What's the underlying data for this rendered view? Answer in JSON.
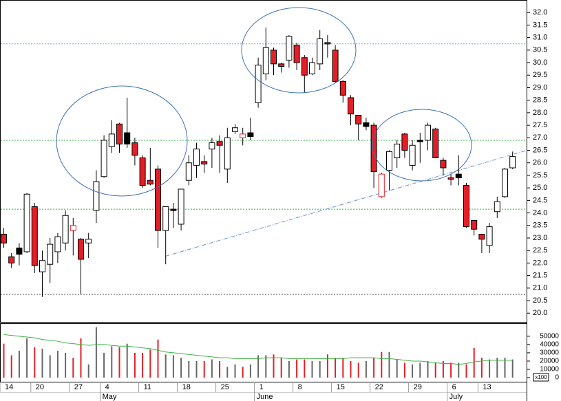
{
  "chart_data": {
    "type": "candlestick",
    "categories": [
      "14",
      null,
      null,
      null,
      "20",
      null,
      null,
      null,
      null,
      "27",
      null,
      null,
      null,
      "4",
      null,
      null,
      null,
      null,
      "11",
      null,
      null,
      null,
      null,
      "18",
      null,
      null,
      null,
      null,
      "25",
      null,
      null,
      null,
      null,
      "1",
      null,
      null,
      null,
      null,
      "8",
      null,
      null,
      null,
      null,
      "15",
      null,
      null,
      null,
      null,
      "22",
      null,
      null,
      null,
      null,
      "29",
      null,
      null,
      null,
      null,
      "6",
      null,
      null,
      null,
      "13",
      null,
      null,
      null,
      null
    ],
    "months": [
      null,
      null,
      null,
      null,
      null,
      null,
      null,
      null,
      null,
      null,
      null,
      null,
      null,
      "May",
      null,
      null,
      null,
      null,
      null,
      null,
      null,
      null,
      null,
      null,
      null,
      null,
      null,
      null,
      null,
      null,
      null,
      null,
      null,
      "June",
      null,
      null,
      null,
      null,
      null,
      null,
      null,
      null,
      null,
      null,
      null,
      null,
      null,
      null,
      null,
      null,
      null,
      null,
      null,
      null,
      null,
      null,
      null,
      null,
      "July",
      null,
      null,
      null,
      null,
      null,
      null,
      null,
      null
    ],
    "open": [
      23.15,
      22.25,
      22.6,
      22.45,
      24.25,
      21.65,
      21.95,
      22.45,
      22.8,
      23.5,
      22.95,
      22.8,
      24.1,
      25.45,
      26.65,
      27.55,
      27.2,
      26.8,
      26.2,
      25.3,
      25.75,
      23.3,
      24.15,
      23.55,
      25.3,
      25.9,
      26.05,
      26.55,
      26.85,
      25.75,
      27.25,
      27.15,
      27.2,
      28.4,
      29.55,
      30.5,
      29.95,
      30.1,
      30.7,
      30.2,
      29.55,
      29.95,
      30.8,
      30.5,
      29.25,
      28.6,
      27.9,
      27.6,
      27.5,
      24.65,
      25.7,
      26.2,
      27.15,
      25.9,
      26.85,
      26.9,
      27.35,
      26.1,
      25.4,
      25.55,
      25.1,
      23.7,
      23.15,
      22.7,
      24.05,
      24.65,
      25.8
    ],
    "high": [
      23.4,
      22.4,
      22.8,
      24.8,
      24.4,
      22.5,
      23.0,
      23.2,
      24.1,
      23.8,
      23.0,
      23.2,
      25.7,
      27.1,
      27.7,
      27.6,
      28.6,
      27.0,
      26.3,
      26.6,
      25.9,
      24.25,
      24.4,
      24.95,
      26.3,
      26.8,
      26.3,
      27.0,
      27.1,
      27.4,
      27.55,
      27.4,
      27.8,
      30.2,
      31.4,
      30.6,
      30.0,
      31.1,
      30.8,
      30.3,
      30.2,
      31.3,
      31.1,
      30.7,
      29.3,
      28.7,
      27.9,
      27.8,
      27.6,
      25.6,
      26.5,
      26.9,
      27.2,
      26.9,
      27.2,
      27.6,
      27.4,
      26.2,
      25.55,
      26.3,
      25.2,
      23.7,
      23.15,
      23.6,
      24.65,
      25.8,
      26.45
    ],
    "low": [
      22.6,
      21.8,
      21.9,
      22.4,
      21.6,
      20.65,
      21.2,
      22.0,
      22.5,
      22.3,
      20.75,
      22.2,
      23.6,
      25.4,
      26.4,
      26.4,
      26.6,
      25.9,
      25.0,
      25.1,
      22.6,
      21.95,
      23.4,
      23.3,
      25.1,
      25.4,
      25.6,
      25.8,
      25.6,
      25.2,
      27.15,
      26.7,
      26.9,
      28.2,
      29.3,
      29.5,
      29.6,
      29.8,
      29.7,
      28.8,
      29.5,
      29.7,
      30.2,
      29.2,
      28.4,
      27.5,
      26.9,
      27.3,
      25.0,
      24.6,
      24.9,
      25.8,
      26.2,
      25.7,
      26.0,
      26.5,
      26.2,
      25.5,
      25.1,
      25.1,
      23.4,
      23.1,
      22.4,
      22.4,
      23.8,
      24.6,
      25.75
    ],
    "close": [
      22.8,
      22.0,
      22.35,
      24.75,
      21.9,
      22.1,
      22.75,
      23.05,
      23.9,
      23.3,
      22.15,
      22.95,
      25.25,
      26.9,
      27.15,
      26.75,
      26.75,
      26.3,
      25.1,
      25.15,
      23.3,
      24.25,
      24.1,
      24.95,
      26.0,
      26.55,
      25.95,
      26.8,
      26.7,
      27.0,
      27.4,
      27.0,
      27.05,
      29.9,
      30.6,
      29.95,
      29.85,
      31.05,
      30.0,
      29.5,
      30.0,
      30.95,
      30.75,
      29.25,
      28.7,
      27.95,
      27.55,
      27.45,
      25.65,
      25.55,
      26.45,
      26.75,
      26.5,
      26.7,
      26.9,
      27.5,
      26.2,
      25.8,
      25.35,
      25.4,
      23.45,
      23.35,
      22.95,
      23.45,
      24.45,
      25.75,
      26.25
    ],
    "down_color": "#e41e26",
    "candle_fills": [
      "#e41e26",
      "#e41e26",
      "#000000",
      "#ffffff",
      "#e41e26",
      "#ffffff",
      "#ffffff",
      "#ffffff",
      "#ffffff",
      "#ffffff",
      "#e41e26",
      "#ffffff",
      "#ffffff",
      "#ffffff",
      "#ffffff",
      "#e41e26",
      "#000000",
      "#e41e26",
      "#e41e26",
      "#e41e26",
      "#e41e26",
      "#ffffff",
      "#000000",
      "#ffffff",
      "#ffffff",
      "#ffffff",
      "#e41e26",
      "#ffffff",
      "#e41e26",
      "#ffffff",
      "#ffffff",
      "#ffffff",
      "#000000",
      "#ffffff",
      "#ffffff",
      "#e41e26",
      "#e41e26",
      "#ffffff",
      "#e41e26",
      "#e41e26",
      "#ffffff",
      "#ffffff",
      "#e41e26",
      "#e41e26",
      "#e41e26",
      "#e41e26",
      "#e41e26",
      "#000000",
      "#e41e26",
      "#ffffff",
      "#ffffff",
      "#ffffff",
      "#e41e26",
      "#ffffff",
      "#000000",
      "#ffffff",
      "#e41e26",
      "#e41e26",
      "#e41e26",
      "#000000",
      "#e41e26",
      "#e41e26",
      "#e41e26",
      "#ffffff",
      "#ffffff",
      "#ffffff",
      "#ffffff"
    ],
    "candle_strokes": [
      "#000000",
      "#000000",
      "#000000",
      "#000000",
      "#000000",
      "#000000",
      "#000000",
      "#000000",
      "#000000",
      "#e41e26",
      "#000000",
      "#000000",
      "#000000",
      "#000000",
      "#000000",
      "#000000",
      "#000000",
      "#000000",
      "#000000",
      "#000000",
      "#000000",
      "#000000",
      "#000000",
      "#000000",
      "#000000",
      "#000000",
      "#000000",
      "#000000",
      "#000000",
      "#000000",
      "#000000",
      "#e41e26",
      "#000000",
      "#000000",
      "#000000",
      "#000000",
      "#000000",
      "#000000",
      "#000000",
      "#000000",
      "#000000",
      "#000000",
      "#000000",
      "#000000",
      "#000000",
      "#000000",
      "#000000",
      "#000000",
      "#000000",
      "#e41e26",
      "#000000",
      "#000000",
      "#000000",
      "#000000",
      "#000000",
      "#000000",
      "#000000",
      "#000000",
      "#000000",
      "#000000",
      "#000000",
      "#000000",
      "#000000",
      "#000000",
      "#000000",
      "#000000",
      "#000000"
    ],
    "ylim": [
      19.65,
      32.5
    ],
    "yticks": [
      {
        "value": 20,
        "label": "20.0"
      },
      {
        "value": 20.5,
        "label": "20.5"
      },
      {
        "value": 21,
        "label": "21.0"
      },
      {
        "value": 21.5,
        "label": "21.5"
      },
      {
        "value": 22,
        "label": "22.0"
      },
      {
        "value": 22.5,
        "label": "22.5"
      },
      {
        "value": 23,
        "label": "23.0"
      },
      {
        "value": 23.5,
        "label": "23.5"
      },
      {
        "value": 24,
        "label": "24.0"
      },
      {
        "value": 24.5,
        "label": "24.5"
      },
      {
        "value": 25,
        "label": "25.0"
      },
      {
        "value": 25.5,
        "label": "25.5"
      },
      {
        "value": 26,
        "label": "26.0"
      },
      {
        "value": 26.5,
        "label": "26.5"
      },
      {
        "value": 27,
        "label": "27.0"
      },
      {
        "value": 27.5,
        "label": "27.5"
      },
      {
        "value": 28,
        "label": "28.0"
      },
      {
        "value": 28.5,
        "label": "28.5"
      },
      {
        "value": 29,
        "label": "29.0"
      },
      {
        "value": 29.5,
        "label": "29.5"
      },
      {
        "value": 30,
        "label": "30.0"
      },
      {
        "value": 30.5,
        "label": "30.5"
      },
      {
        "value": 31,
        "label": "31.0"
      },
      {
        "value": 31.5,
        "label": "31.5"
      },
      {
        "value": 32,
        "label": "32.0"
      }
    ],
    "hlines": [
      {
        "value": 30.75,
        "color": "#7fa7c9"
      },
      {
        "value": 26.9,
        "color": "#3cb043"
      },
      {
        "value": 24.15,
        "color": "#3cb043"
      },
      {
        "value": 20.75,
        "color": "#555555"
      }
    ],
    "trendline": {
      "x": [
        21,
        67.9
      ],
      "y": [
        22.27,
        26.5
      ],
      "color": "#6b8fc4"
    },
    "volume": {
      "values": [
        41000,
        27000,
        32500,
        47500,
        36700,
        35000,
        27000,
        32500,
        30000,
        24000,
        47500,
        16000,
        61000,
        30000,
        38000,
        36700,
        41000,
        30000,
        30000,
        34000,
        46000,
        28000,
        27000,
        24000,
        20000,
        20000,
        20000,
        22000,
        20000,
        13000,
        16000,
        13000,
        16000,
        27000,
        27000,
        28000,
        24000,
        20000,
        22000,
        22000,
        20000,
        20000,
        28000,
        24000,
        24000,
        20000,
        18000,
        20000,
        24000,
        31000,
        31000,
        22000,
        18000,
        16000,
        18000,
        20000,
        18000,
        20000,
        18000,
        18000,
        16000,
        36000,
        24000,
        22000,
        24000,
        24000,
        22000
      ],
      "average": [
        52000,
        51000,
        50000,
        49000,
        48000,
        46000,
        45000,
        44000,
        42000,
        41000,
        40000,
        39000,
        40000,
        40000,
        39000,
        38000,
        38000,
        37000,
        36000,
        35000,
        33000,
        31000,
        30000,
        29000,
        28000,
        27000,
        26000,
        25000,
        24000,
        24000,
        23000,
        23000,
        23000,
        23000,
        24000,
        24000,
        24000,
        23000,
        23000,
        23000,
        23000,
        23000,
        23000,
        23000,
        23000,
        24000,
        24000,
        24000,
        24000,
        23000,
        23000,
        22000,
        21000,
        20000,
        20000,
        19000,
        18000,
        17000,
        17000,
        16000,
        17000,
        19000,
        20000,
        21000,
        21000,
        21000,
        21000
      ],
      "other_color": "#666666",
      "average_color": "#3cb043",
      "ylim": [
        0,
        64000
      ],
      "yticks": [
        0,
        10000,
        20000,
        30000,
        40000,
        50000
      ],
      "unit_label": "x100"
    }
  }
}
